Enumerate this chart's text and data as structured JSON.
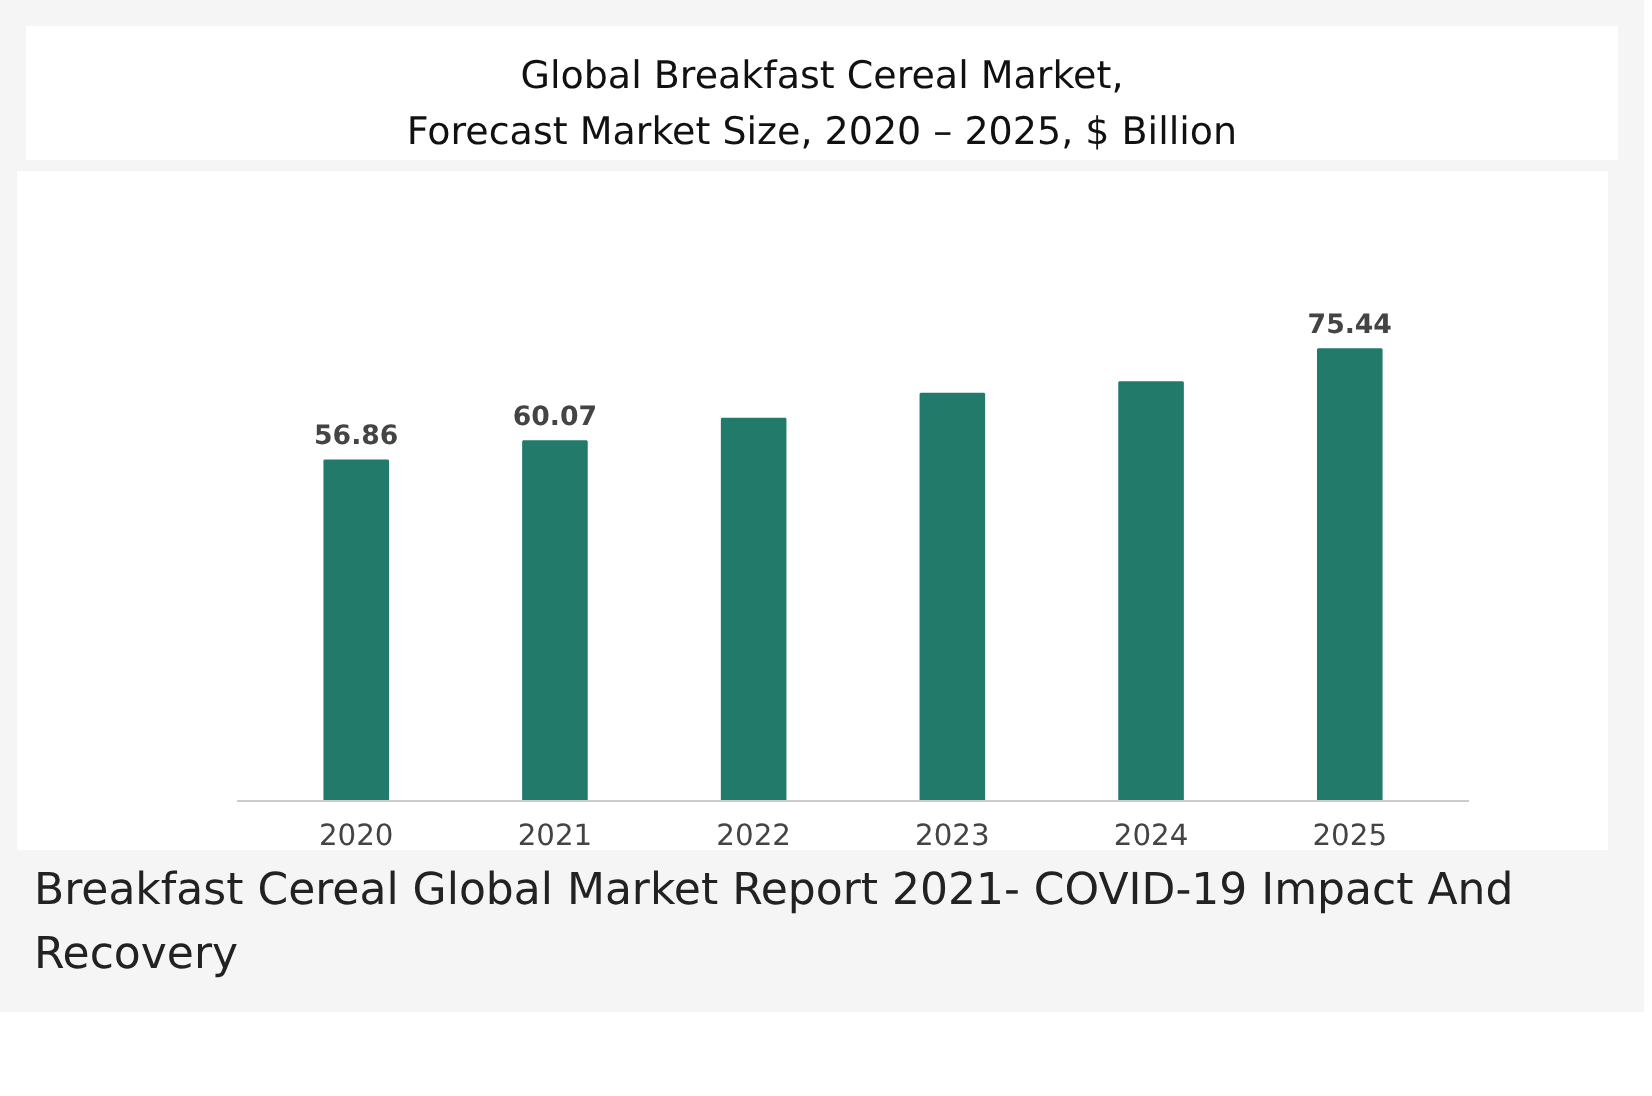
{
  "chart_data": {
    "type": "bar",
    "title": "Global Breakfast Cereal Market,\nForecast Market Size, 2020 – 2025, $ Billion",
    "categories": [
      "2020",
      "2021",
      "2022",
      "2023",
      "2024",
      "2025"
    ],
    "values": [
      56.86,
      60.07,
      63.8,
      68.0,
      69.9,
      75.44
    ],
    "value_labels": [
      "56.86",
      "60.07",
      null,
      null,
      null,
      "75.44"
    ],
    "color": "#217a6a",
    "grid": false,
    "annotations": [
      "Breakfast Cereal Global Market Report 2021- COVID-19 Impact And Recovery"
    ]
  }
}
